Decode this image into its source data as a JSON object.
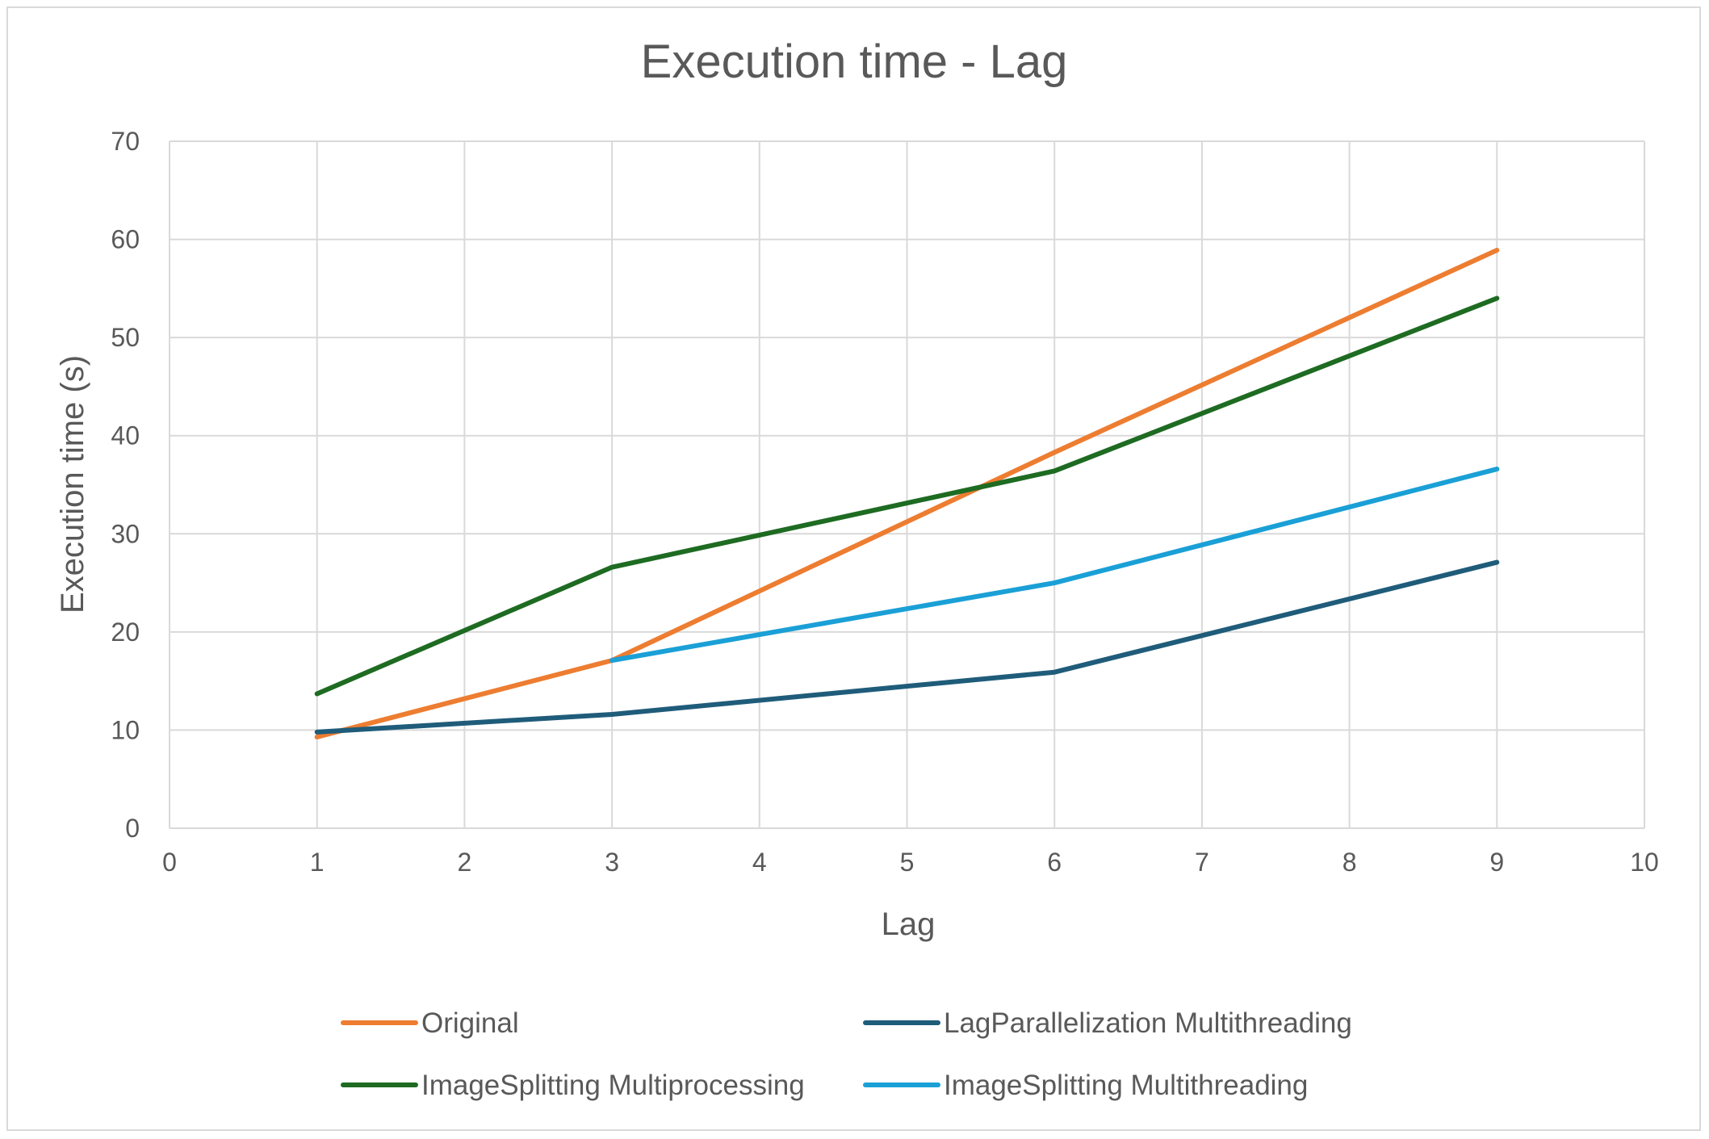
{
  "chart_data": {
    "type": "scatter",
    "title": "Execution time - Lag",
    "xlabel": "Lag",
    "ylabel": "Execution time (s)",
    "xlim": [
      0,
      10
    ],
    "ylim": [
      0,
      70
    ],
    "xticks": [
      "0",
      "1",
      "2",
      "3",
      "4",
      "5",
      "6",
      "7",
      "8",
      "9",
      "10"
    ],
    "yticks": [
      "0",
      "10",
      "20",
      "30",
      "40",
      "50",
      "60",
      "70"
    ],
    "grid": true,
    "legend_position": "bottom",
    "series": [
      {
        "name": "Original",
        "color": "#ED7D31",
        "x": [
          1,
          3,
          6,
          9
        ],
        "y": [
          9.3,
          17.1,
          38.3,
          58.9
        ]
      },
      {
        "name": "LagParallelization Multithreading",
        "color": "#1F5C7A",
        "x": [
          1,
          3,
          6,
          9
        ],
        "y": [
          9.8,
          11.6,
          15.9,
          27.1
        ]
      },
      {
        "name": "ImageSplitting Multiprocessing",
        "color": "#1E6B22",
        "x": [
          1,
          3,
          6,
          9
        ],
        "y": [
          13.7,
          26.6,
          36.4,
          54.0
        ]
      },
      {
        "name": "ImageSplitting Multithreading",
        "color": "#1AA0D6",
        "x": [
          3,
          6,
          9
        ],
        "y": [
          17.1,
          25.0,
          36.6
        ]
      }
    ]
  }
}
